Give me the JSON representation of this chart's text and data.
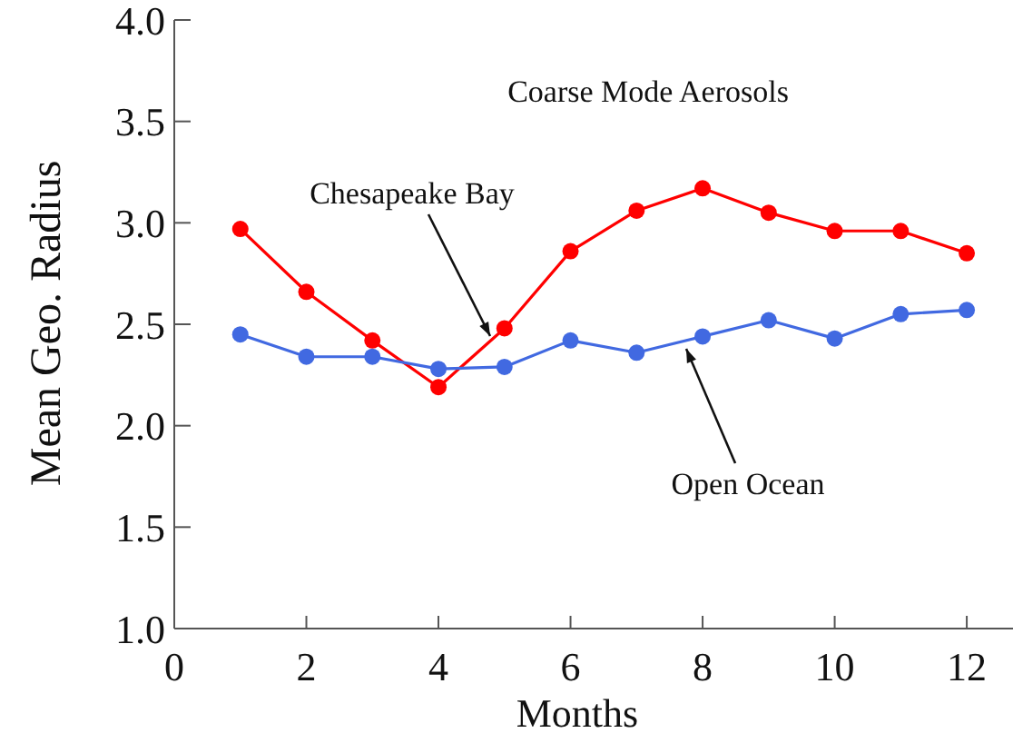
{
  "chart_data": {
    "type": "line",
    "title": "Coarse Mode Aerosols",
    "xlabel": "Months",
    "ylabel": "Mean Geo. Radius",
    "x": [
      1,
      2,
      3,
      4,
      5,
      6,
      7,
      8,
      9,
      10,
      11,
      12
    ],
    "series": [
      {
        "name": "Chesapeake Bay",
        "color": "#ff0000",
        "values": [
          2.97,
          2.66,
          2.42,
          2.19,
          2.48,
          2.86,
          3.06,
          3.17,
          3.05,
          2.96,
          2.96,
          2.85
        ]
      },
      {
        "name": "Open Ocean",
        "color": "#4169e1",
        "values": [
          2.45,
          2.34,
          2.34,
          2.28,
          2.29,
          2.42,
          2.36,
          2.44,
          2.52,
          2.43,
          2.55,
          2.57
        ]
      }
    ],
    "xlim": [
      0,
      12.7
    ],
    "xticks": [
      0,
      2,
      4,
      6,
      8,
      10,
      12
    ],
    "ylim": [
      1.0,
      4.0
    ],
    "yticks": [
      {
        "value": 1.0,
        "label": "1.0"
      },
      {
        "value": 1.5,
        "label": "1.5"
      },
      {
        "value": 2.0,
        "label": "2.0"
      },
      {
        "value": 2.5,
        "label": "2.5"
      },
      {
        "value": 3.0,
        "label": "3.0"
      },
      {
        "value": 3.5,
        "label": "3.5"
      },
      {
        "value": 4.0,
        "label": "4.0"
      }
    ],
    "grid": false,
    "legend": false,
    "marker": "circle",
    "line_style": "solid"
  }
}
